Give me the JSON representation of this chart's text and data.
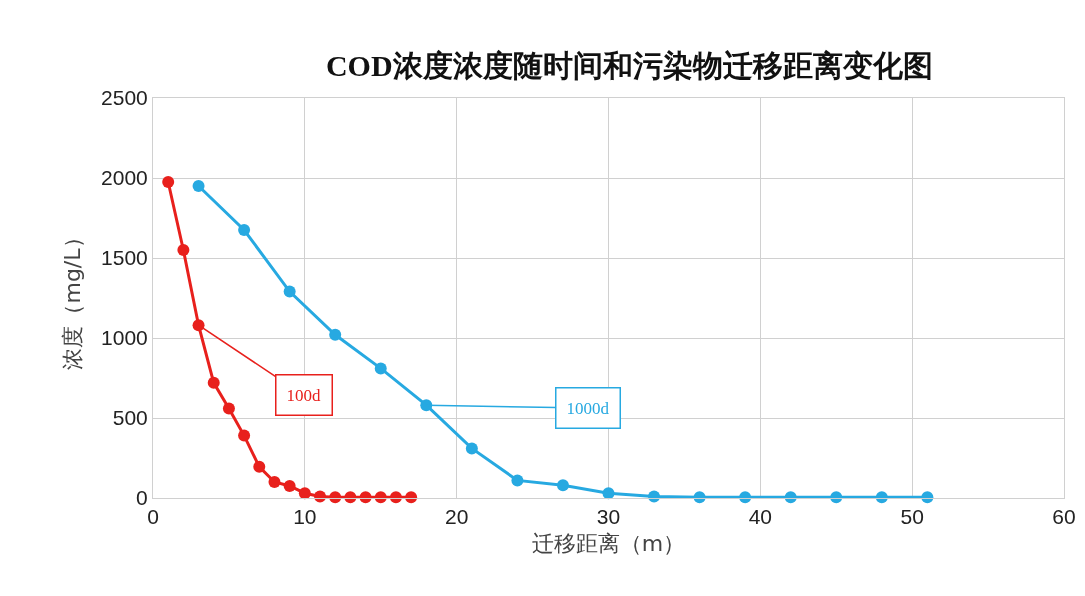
{
  "chart_data": {
    "type": "line",
    "title": "COD浓度浓度随时间和污染物迁移距离变化图",
    "xlabel": "迁移距离（m）",
    "ylabel": "浓度（mg/L）",
    "series": [
      {
        "color": "#e8201c",
        "x": [
          1,
          2,
          3,
          4,
          5,
          6,
          7,
          8,
          9,
          10,
          11,
          12,
          13,
          14,
          15,
          16,
          17
        ],
        "values": [
          1975,
          1550,
          1080,
          720,
          560,
          390,
          195,
          100,
          75,
          30,
          10,
          5,
          5,
          5,
          5,
          5,
          5
        ]
      },
      {
        "color": "#27a9e1",
        "x": [
          3,
          6,
          9,
          12,
          15,
          18,
          21,
          24,
          27,
          30,
          33,
          36,
          39,
          42,
          45,
          48,
          51
        ],
        "values": [
          1950,
          1675,
          1290,
          1020,
          810,
          580,
          310,
          110,
          80,
          30,
          10,
          5,
          5,
          5,
          5,
          5,
          5
        ]
      }
    ],
    "annotations": [
      {
        "text": "100d",
        "x": 3,
        "y": 1080
      },
      {
        "text": "1000d",
        "x": 18,
        "y": 580
      }
    ],
    "xlim": [
      0,
      60
    ],
    "xticks": [
      0,
      10,
      20,
      30,
      40,
      50,
      60
    ],
    "ylim": [
      0,
      2500
    ],
    "yticks": [
      0,
      500,
      1000,
      1500,
      2000,
      2500
    ],
    "grid": true,
    "marker": "circle",
    "line_style": "solid"
  }
}
